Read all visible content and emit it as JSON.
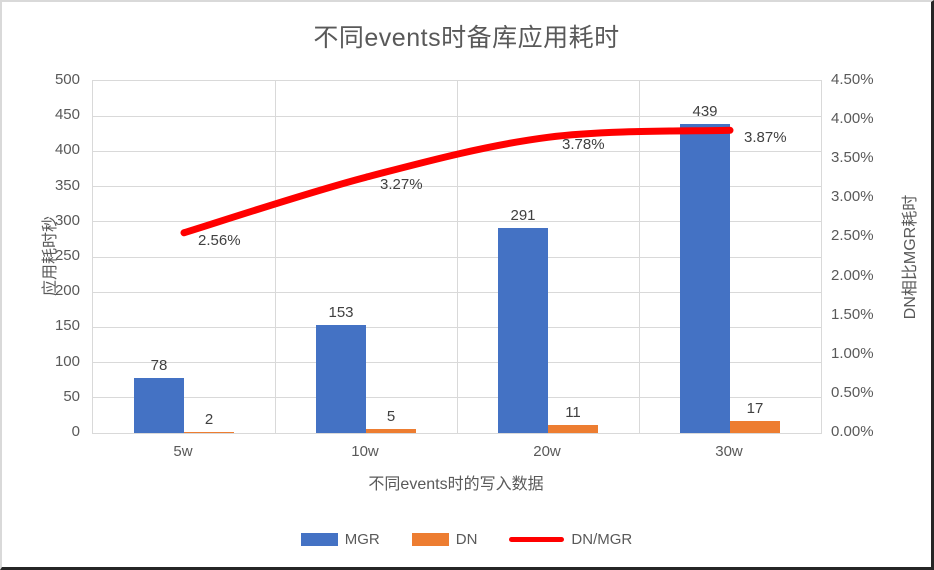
{
  "chart_data": {
    "type": "combo bar+line",
    "title": "不同events时备库应用耗时",
    "categories": [
      "5w",
      "10w",
      "20w",
      "30w"
    ],
    "series": [
      {
        "name": "MGR",
        "type": "bar",
        "axis": "left",
        "color": "#4472C4",
        "values": [
          78,
          153,
          291,
          439
        ],
        "labels": [
          "78",
          "153",
          "291",
          "439"
        ]
      },
      {
        "name": "DN",
        "type": "bar",
        "axis": "left",
        "color": "#ED7D31",
        "values": [
          2,
          5,
          11,
          17
        ],
        "labels": [
          "2",
          "5",
          "11",
          "17"
        ]
      },
      {
        "name": "DN/MGR",
        "type": "line",
        "axis": "right",
        "color": "#FF0000",
        "values": [
          2.56,
          3.27,
          3.78,
          3.87
        ],
        "labels": [
          "2.56%",
          "3.27%",
          "3.78%",
          "3.87%"
        ],
        "smooth": true
      }
    ],
    "left_axis": {
      "label": "应用耗时秒",
      "min": 0,
      "max": 500,
      "step": 50,
      "ticks": [
        "0",
        "50",
        "100",
        "150",
        "200",
        "250",
        "300",
        "350",
        "400",
        "450",
        "500"
      ]
    },
    "right_axis": {
      "label": "DN相比MGR耗时",
      "min": 0,
      "max": 4.5,
      "step": 0.5,
      "ticks": [
        "0.00%",
        "0.50%",
        "1.00%",
        "1.50%",
        "2.00%",
        "2.50%",
        "3.00%",
        "3.50%",
        "4.00%",
        "4.50%"
      ]
    },
    "x_axis": {
      "label": "不同events时的写入数据"
    },
    "legend": [
      {
        "label": "MGR",
        "swatch": "bar",
        "color": "#4472C4"
      },
      {
        "label": "DN",
        "swatch": "bar",
        "color": "#ED7D31"
      },
      {
        "label": "DN/MGR",
        "swatch": "line",
        "color": "#FF0000"
      }
    ],
    "grid": true,
    "legend_position": "bottom",
    "colors": {
      "grid": "#D9D9D9",
      "axis_text": "#595959",
      "data_label_text": "#404040"
    }
  }
}
